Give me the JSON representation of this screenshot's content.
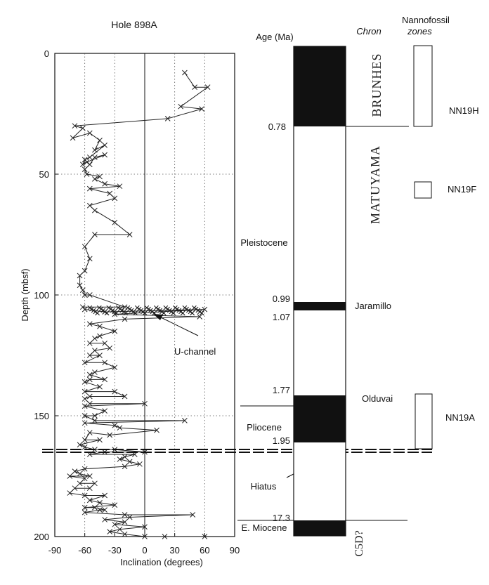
{
  "chart_data": {
    "type": "line",
    "title": "Hole 898A",
    "xlabel": "Inclination (degrees)",
    "ylabel": "Depth (mbsf)",
    "xlim": [
      -90,
      90
    ],
    "ylim": [
      0,
      200
    ],
    "y_inverted": true,
    "grid": true,
    "x_ticks": [
      "-90",
      "-60",
      "-30",
      "0",
      "30",
      "60",
      "90"
    ],
    "y_ticks": [
      "0",
      "50",
      "100",
      "150",
      "200"
    ],
    "series": [
      {
        "x": [
          40,
          50,
          63,
          36,
          57,
          23,
          -70,
          -62,
          -72,
          -55,
          -45,
          -50,
          -40,
          -55,
          -60,
          -62,
          -58,
          -40,
          -50,
          -55,
          -60,
          -58,
          -45,
          -50,
          -40,
          -25,
          -55,
          -35,
          -30,
          -55,
          -50,
          -30,
          -15,
          -50,
          -60,
          -55,
          -60,
          -65,
          -65,
          -62,
          -60,
          -55,
          -20,
          -62,
          -60,
          -40,
          60,
          -30,
          55,
          -20,
          -55,
          -45,
          -30,
          -45,
          -50,
          -55,
          -40,
          -35,
          -50,
          -55,
          -45,
          -60,
          -40,
          -30,
          -50,
          -55,
          -40,
          -55,
          -60,
          -45,
          -60,
          -30,
          -20,
          -55,
          -60,
          -55,
          0,
          -60,
          -40,
          -50,
          -60,
          -50,
          40,
          -60,
          -30,
          -25,
          12,
          -35,
          -55,
          -60,
          -45,
          -65,
          -60,
          -50,
          -30,
          0,
          -40,
          -55,
          -10,
          -20,
          -25,
          -15,
          -5,
          -20,
          -60,
          -70,
          -65,
          -55,
          -75,
          -60,
          -65,
          -50,
          -55,
          -70,
          -75,
          -60,
          -40,
          -55,
          -45,
          -30,
          -60,
          -50,
          -40,
          -45,
          -60,
          -20,
          48,
          -15,
          -40,
          -20,
          -30,
          0,
          -25,
          -35,
          -20,
          0,
          60,
          20
        ],
        "y": [
          8,
          14,
          14,
          22,
          23,
          27,
          30,
          31,
          35,
          33,
          36,
          40,
          38,
          43,
          44,
          46,
          45,
          42,
          43,
          46,
          48,
          50,
          51,
          52,
          54,
          55,
          56,
          58,
          60,
          63,
          65,
          70,
          75,
          75,
          80,
          85,
          90,
          92,
          96,
          98,
          100,
          100,
          105,
          105,
          106,
          107,
          106,
          108,
          109,
          110,
          112,
          113,
          115,
          117,
          118,
          120,
          120,
          122,
          123,
          125,
          125,
          128,
          128,
          130,
          132,
          133,
          135,
          135,
          136,
          138,
          140,
          140,
          142,
          142,
          143,
          145,
          145,
          146,
          148,
          150,
          150,
          152,
          152,
          153,
          154,
          155,
          156,
          158,
          157,
          160,
          160,
          162,
          163,
          164,
          164,
          165,
          165,
          166,
          166,
          167,
          168,
          169,
          170,
          171,
          172,
          173,
          174,
          175,
          175,
          176,
          178,
          178,
          180,
          180,
          182,
          183,
          183,
          185,
          186,
          187,
          188,
          188,
          189,
          189,
          190,
          191,
          191,
          192,
          193,
          194,
          195,
          196,
          197,
          198,
          199,
          200,
          200,
          200
        ]
      }
    ],
    "annotation": "U-channel",
    "age_column": {
      "header": "Age (Ma)",
      "labels": [
        "0.78",
        "0.99",
        "1.07",
        "1.77",
        "1.95",
        "17.3"
      ],
      "epochs": [
        "Pleistocene",
        "Pliocene",
        "E. Miocene"
      ],
      "hiatus": "Hiatus"
    },
    "chron_column": {
      "header": "Chron",
      "names": [
        "BRUNHES",
        "MATUYAMA",
        "Jaramillo",
        "Olduvai",
        "C5D?"
      ]
    },
    "nannofossil_column": {
      "header_line1": "Nannofossil",
      "header_line2": "zones",
      "zones": [
        "NN19H",
        "NN19F",
        "NN19A"
      ]
    }
  }
}
